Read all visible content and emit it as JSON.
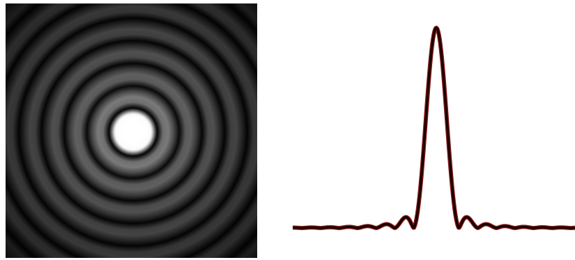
{
  "figure": {
    "left_panel": {
      "kind": "airy-disk-diffraction-pattern",
      "background_color": "#000000",
      "center_color": "#ffffff",
      "ring_color": "#7a7a7a"
    },
    "right_panel": {
      "kind": "intensity-cross-section-profile",
      "background_color": "#ffffff",
      "curve_color": "#1a0000",
      "curve_edge_color": "#8b1a1a"
    }
  }
}
